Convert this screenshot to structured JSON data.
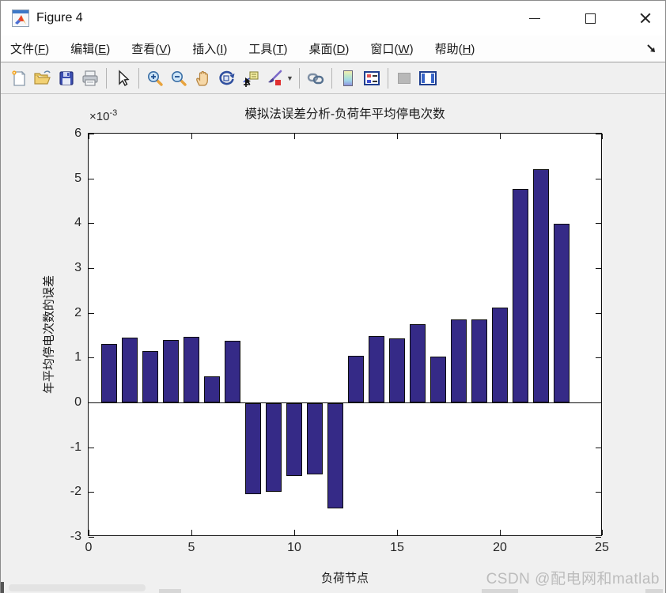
{
  "window": {
    "title": "Figure 4",
    "controls": {
      "minimize": "minimize",
      "maximize": "maximize",
      "close": "close"
    }
  },
  "menu": {
    "items": [
      {
        "label": "文件",
        "key": "F"
      },
      {
        "label": "编辑",
        "key": "E"
      },
      {
        "label": "查看",
        "key": "V"
      },
      {
        "label": "插入",
        "key": "I"
      },
      {
        "label": "工具",
        "key": "T"
      },
      {
        "label": "桌面",
        "key": "D"
      },
      {
        "label": "窗口",
        "key": "W"
      },
      {
        "label": "帮助",
        "key": "H"
      }
    ],
    "dock_arrow": "dock-figure-arrow"
  },
  "toolbar": {
    "items": [
      "new-figure",
      "open-file",
      "save-figure",
      "print-figure",
      "edit-plot-pointer",
      "zoom-in",
      "zoom-out",
      "pan",
      "rotate-3d",
      "data-cursor",
      "brush-data",
      "brush-dropdown",
      "link-plot",
      "insert-colorbar",
      "insert-legend",
      "hide-plot-tools",
      "show-plot-tools-dock"
    ]
  },
  "chart_data": {
    "type": "bar",
    "title": "模拟法误差分析-负荷年平均停电次数",
    "xlabel": "负荷节点",
    "ylabel": "年平均停电次数的误差",
    "exponent_base": "×10",
    "exponent_power": "-3",
    "unit_exponent": -3,
    "x": [
      1,
      2,
      3,
      4,
      5,
      6,
      7,
      8,
      9,
      10,
      11,
      12,
      13,
      14,
      15,
      16,
      17,
      18,
      19,
      20,
      21,
      22,
      23
    ],
    "values": [
      1.3,
      1.44,
      1.15,
      1.4,
      1.46,
      0.58,
      1.37,
      -2.03,
      -1.97,
      -1.62,
      -1.58,
      -2.35,
      1.05,
      1.49,
      1.43,
      1.74,
      1.03,
      1.86,
      1.85,
      2.12,
      4.77,
      5.2,
      3.98
    ],
    "xlim": [
      0,
      25
    ],
    "ylim": [
      -3,
      6
    ],
    "xticks": [
      0,
      5,
      10,
      15,
      20,
      25
    ],
    "yticks": [
      -3,
      -2,
      -1,
      0,
      1,
      2,
      3,
      4,
      5,
      6
    ],
    "bar_width_fraction": 0.8,
    "bar_color": "#352A87",
    "bar_edge_color": "#0d0d0d",
    "grid": false,
    "legend": null
  },
  "watermark": "CSDN @配电网和matlab"
}
